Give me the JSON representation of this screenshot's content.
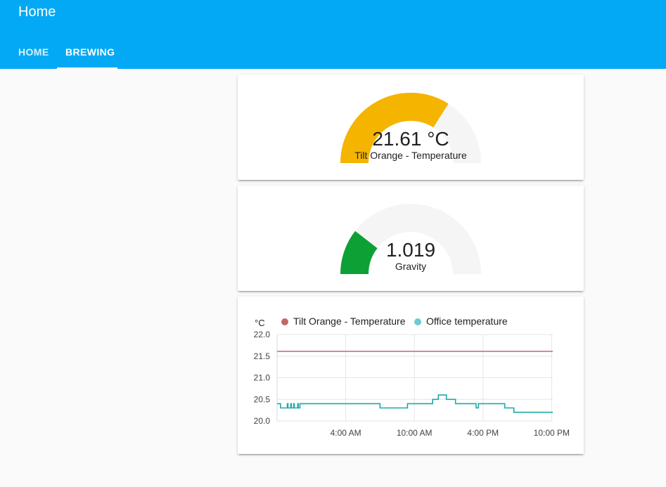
{
  "header": {
    "title": "Home",
    "tabs": [
      {
        "label": "HOME",
        "active": false
      },
      {
        "label": "BREWING",
        "active": true
      }
    ],
    "color": "#03a9f4"
  },
  "gauges": [
    {
      "value_text": "21.61 °C",
      "name": "Tilt Orange - Temperature",
      "fraction": 0.68,
      "color": "#f4b400"
    },
    {
      "value_text": "1.019",
      "name": "Gravity",
      "fraction": 0.21,
      "color": "#0da035"
    }
  ],
  "chart": {
    "unit": "°C",
    "legend": [
      {
        "name": "Tilt Orange - Temperature",
        "color": "#c0676c"
      },
      {
        "name": "Office temperature",
        "color": "#6ccbd3"
      }
    ]
  },
  "chart_data": {
    "type": "line",
    "ylabel": "°C",
    "ylim": [
      20.0,
      22.0
    ],
    "y_ticks": [
      "22.0",
      "21.5",
      "21.0",
      "20.5",
      "20.0"
    ],
    "x_ticks": [
      "4:00 AM",
      "10:00 AM",
      "4:00 PM",
      "10:00 PM"
    ],
    "x_tick_hours": [
      4,
      10,
      16,
      22
    ],
    "xlim_hours": [
      -2,
      22.1
    ],
    "grid": true,
    "legend_position": "top",
    "series": [
      {
        "name": "Tilt Orange - Temperature",
        "color": "#c0676c",
        "points": [
          [
            -2,
            21.61
          ],
          [
            22.1,
            21.61
          ]
        ]
      },
      {
        "name": "Office temperature",
        "color": "#1ea8a8",
        "points": [
          [
            -2,
            20.4
          ],
          [
            -1.7,
            20.4
          ],
          [
            -1.7,
            20.3
          ],
          [
            -1.1,
            20.3
          ],
          [
            -1.1,
            20.4
          ],
          [
            -1.05,
            20.4
          ],
          [
            -1.05,
            20.3
          ],
          [
            -0.8,
            20.3
          ],
          [
            -0.8,
            20.4
          ],
          [
            -0.75,
            20.4
          ],
          [
            -0.75,
            20.3
          ],
          [
            -0.55,
            20.3
          ],
          [
            -0.55,
            20.4
          ],
          [
            -0.5,
            20.4
          ],
          [
            -0.5,
            20.3
          ],
          [
            -0.2,
            20.3
          ],
          [
            -0.2,
            20.4
          ],
          [
            -0.15,
            20.4
          ],
          [
            -0.15,
            20.3
          ],
          [
            0,
            20.3
          ],
          [
            0,
            20.4
          ],
          [
            7,
            20.4
          ],
          [
            7,
            20.3
          ],
          [
            9.4,
            20.3
          ],
          [
            9.4,
            20.4
          ],
          [
            11.6,
            20.4
          ],
          [
            11.6,
            20.5
          ],
          [
            12.1,
            20.5
          ],
          [
            12.1,
            20.6
          ],
          [
            12.8,
            20.6
          ],
          [
            12.8,
            20.5
          ],
          [
            13.6,
            20.5
          ],
          [
            13.6,
            20.4
          ],
          [
            15.4,
            20.4
          ],
          [
            15.4,
            20.3
          ],
          [
            15.6,
            20.3
          ],
          [
            15.6,
            20.4
          ],
          [
            17.9,
            20.4
          ],
          [
            17.9,
            20.3
          ],
          [
            18.7,
            20.3
          ],
          [
            18.7,
            20.2
          ],
          [
            22.1,
            20.2
          ]
        ]
      }
    ]
  }
}
